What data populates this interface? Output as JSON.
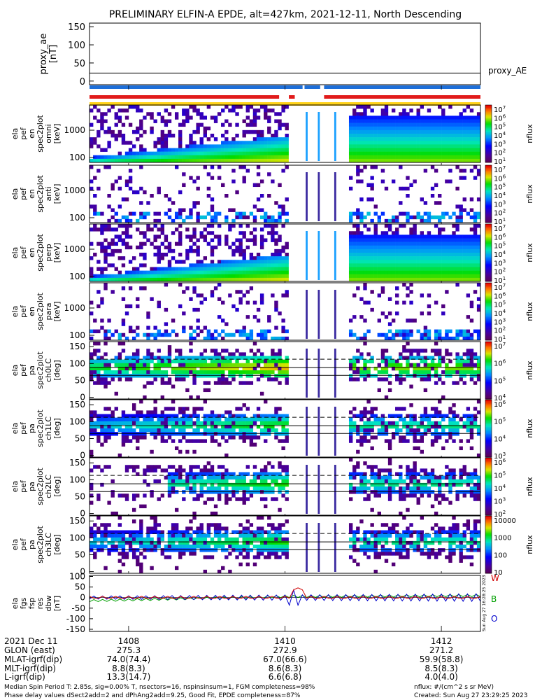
{
  "title": "PRELIMINARY ELFIN-A EPDE, alt=427km, 2021-12-11, North Descending",
  "proxy_ae": {
    "ylabel": [
      "proxy_ae",
      "[nT]"
    ],
    "yticks": [
      "150",
      "100",
      "50",
      "0"
    ],
    "ylim": [
      -10,
      160
    ],
    "line_value": 22,
    "legend": "proxy_AE"
  },
  "status_bars": {
    "blue": [
      [
        0.0,
        0.545
      ],
      [
        0.55,
        0.59
      ],
      [
        0.6,
        1.0
      ]
    ],
    "red": [
      [
        0.0,
        0.485
      ],
      [
        0.51,
        0.525
      ],
      [
        0.6,
        1.0
      ]
    ],
    "yellow": [
      [
        0.0,
        1.0
      ]
    ]
  },
  "panels": [
    {
      "labels": [
        "ela",
        "pef",
        "en",
        "spec2plot",
        "omni",
        "[keV]"
      ],
      "kind": "energy",
      "yticks": [
        "1000",
        "100"
      ],
      "cb_ticks": [
        "10^7",
        "10^6",
        "10^5",
        "10^4",
        "10^3",
        "10^2",
        "10^1"
      ],
      "cb_label": "nflux"
    },
    {
      "labels": [
        "ela",
        "pef",
        "en",
        "spec2plot",
        "anti",
        "[keV]"
      ],
      "kind": "energy",
      "yticks": [
        "1000",
        "100"
      ],
      "cb_ticks": [
        "10^7",
        "10^6",
        "10^5",
        "10^4",
        "10^3",
        "10^2",
        "10^1"
      ],
      "cb_label": "nflux"
    },
    {
      "labels": [
        "ela",
        "pef",
        "en",
        "spec2plot",
        "perp",
        "[keV]"
      ],
      "kind": "energy",
      "yticks": [
        "1000",
        "100"
      ],
      "cb_ticks": [
        "10^7",
        "10^6",
        "10^5",
        "10^4",
        "10^3",
        "10^2",
        "10^1"
      ],
      "cb_label": "nflux"
    },
    {
      "labels": [
        "ela",
        "pef",
        "en",
        "spec2plot",
        "para",
        "[keV]"
      ],
      "kind": "energy",
      "yticks": [
        "1000",
        "100"
      ],
      "cb_ticks": [
        "10^7",
        "10^6",
        "10^5",
        "10^4",
        "10^3",
        "10^2",
        "10^1"
      ],
      "cb_label": "nflux"
    },
    {
      "labels": [
        "ela",
        "pef",
        "pa",
        "spec2plot",
        "ch0LC",
        "[deg]"
      ],
      "kind": "pitch",
      "yticks": [
        "150",
        "100",
        "50",
        "0"
      ],
      "cb_ticks": [
        "10^7",
        "10^6",
        "10^5",
        "10^4"
      ],
      "cb_label": "nflux"
    },
    {
      "labels": [
        "ela",
        "pef",
        "pa",
        "spec2plot",
        "ch1LC",
        "[deg]"
      ],
      "kind": "pitch",
      "yticks": [
        "150",
        "100",
        "50",
        "0"
      ],
      "cb_ticks": [
        "10^6",
        "10^5",
        "10^4",
        "10^3"
      ],
      "cb_label": "nflux"
    },
    {
      "labels": [
        "ela",
        "pef",
        "pa",
        "spec2plot",
        "ch2LC",
        "[deg]"
      ],
      "kind": "pitch",
      "yticks": [
        "150",
        "100",
        "50",
        "0"
      ],
      "cb_ticks": [
        "10^6",
        "10^5",
        "10^4",
        "10^3",
        "10^2"
      ],
      "cb_label": "nflux"
    },
    {
      "labels": [
        "ela",
        "pef",
        "pa",
        "spec2plot",
        "ch3LC",
        "[deg]"
      ],
      "kind": "pitch",
      "yticks": [
        "150",
        "100",
        "50",
        "0"
      ],
      "cb_ticks": [
        "10000",
        "1000",
        "100",
        "10"
      ],
      "cb_label": "nflux"
    }
  ],
  "pitch_lines": {
    "solid": [
      88,
      65
    ],
    "dashed": 113
  },
  "fgs": {
    "ylabel": [
      "ela",
      "fgs",
      "fsp",
      "res",
      "dbw",
      "[nT]"
    ],
    "yticks": [
      "100",
      "50",
      "0",
      "-50",
      "-100",
      "-150"
    ],
    "ylim": [
      -160,
      105
    ],
    "legend": [
      {
        "label": "W",
        "color": "#d00000"
      },
      {
        "label": "B",
        "color": "#00a000"
      },
      {
        "label": "O",
        "color": "#0000cc"
      }
    ]
  },
  "x_axis": {
    "ticks": [
      "1408",
      "1410",
      "1412"
    ],
    "tick_pos": [
      0.1,
      0.5,
      0.9
    ],
    "rows": [
      {
        "label": "2021 Dec 11",
        "values": [
          "1408",
          "1410",
          "1412"
        ]
      },
      {
        "label": "GLON (east)",
        "values": [
          "275.3",
          "272.9",
          "271.2"
        ]
      },
      {
        "label": "MLAT-igrf(dip)",
        "values": [
          "74.0(74.4)",
          "67.0(66.6)",
          "59.9(58.8)"
        ]
      },
      {
        "label": "MLT-igrf(dip)",
        "values": [
          "8.8(8.3)",
          "8.6(8.3)",
          "8.5(8.3)"
        ]
      },
      {
        "label": "L-igrf(dip)",
        "values": [
          "13.3(14.7)",
          "6.6(6.8)",
          "4.0(4.0)"
        ]
      }
    ]
  },
  "footer": {
    "line1": "Median Spin Period T: 2.85s, sig=0.00% T, nsectors=16, nspinsinsum=1, FGM completeness=98%",
    "line2": "Phase delay values dSect2add=2 and dPhAng2add=9.25, Good Fit, EPDE completeness=87%",
    "units": "nflux: #/(cm^2 s sr MeV)",
    "created": "Created: Sun Aug 27 23:29:25 2023",
    "side_stamp": "Sun Aug 27 16:28:25 2023"
  }
}
